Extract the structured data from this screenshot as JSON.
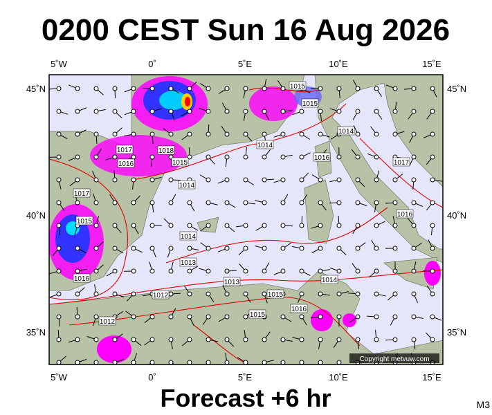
{
  "header": {
    "title": "0200 CEST Sun 16 Aug 2026"
  },
  "axes": {
    "top": [
      "5˚W",
      "0˚",
      "5˚E",
      "10˚E",
      "15˚E"
    ],
    "bottom": [
      "5˚W",
      "0˚",
      "5˚E",
      "10˚E",
      "15˚E"
    ],
    "left": [
      "45˚N",
      "40˚N",
      "35˚N"
    ],
    "right": [
      "45˚N",
      "40˚N",
      "35˚N"
    ]
  },
  "isobars": {
    "labels": [
      "1015",
      "1015",
      "1014",
      "1017",
      "1016",
      "1018",
      "1015",
      "1014",
      "1017",
      "1015",
      "1014",
      "1013",
      "1016",
      "1013",
      "1012",
      "1014",
      "1015",
      "1012",
      "1016",
      "1015",
      "1016",
      "1014",
      "1017",
      "1016"
    ]
  },
  "copyright": "Copyright metvuw.com",
  "footer": {
    "subtitle": "Forecast +6 hr",
    "code": "M3"
  }
}
